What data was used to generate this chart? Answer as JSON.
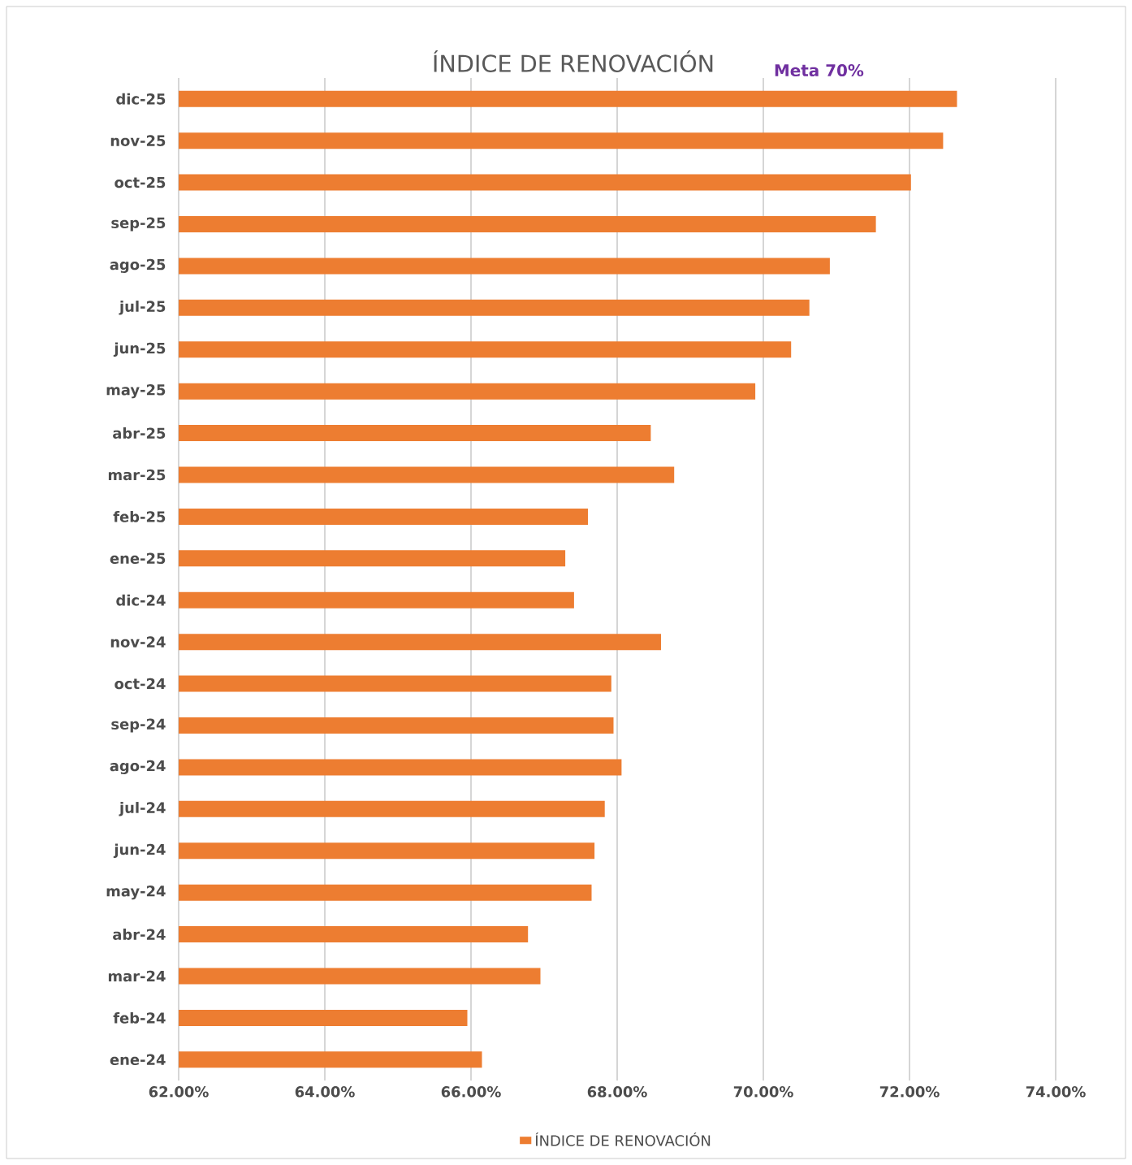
{
  "chart_data": {
    "type": "bar",
    "orientation": "horizontal",
    "title": "ÍNDICE DE RENOVACIÓN",
    "categories": [
      "dic-25",
      "nov-25",
      "oct-25",
      "sep-25",
      "ago-25",
      "jul-25",
      "jun-25",
      "may-25",
      "abr-25",
      "mar-25",
      "feb-25",
      "ene-25",
      "dic-24",
      "nov-24",
      "oct-24",
      "sep-24",
      "ago-24",
      "jul-24",
      "jun-24",
      "may-24",
      "abr-24",
      "mar-24",
      "feb-24",
      "ene-24"
    ],
    "series": [
      {
        "name": "ÍNDICE DE RENOVACIÓN",
        "color": "#ed7d31",
        "values": [
          72.65,
          72.46,
          72.02,
          71.54,
          70.91,
          70.63,
          70.38,
          69.89,
          68.46,
          68.78,
          67.6,
          67.29,
          67.41,
          68.6,
          67.92,
          67.95,
          68.06,
          67.83,
          67.69,
          67.65,
          66.78,
          66.95,
          65.95,
          66.15
        ]
      }
    ],
    "xlim": [
      62,
      74
    ],
    "xticks": [
      {
        "value": 62,
        "label": "62.00%"
      },
      {
        "value": 64,
        "label": "64.00%"
      },
      {
        "value": 66,
        "label": "66.00%"
      },
      {
        "value": 68,
        "label": "68.00%"
      },
      {
        "value": 70,
        "label": "70.00%"
      },
      {
        "value": 72,
        "label": "72.00%"
      },
      {
        "value": 74,
        "label": "74.00%"
      }
    ],
    "annotations": [
      "Meta 70%"
    ],
    "grid": "x",
    "legend": "bottom"
  }
}
